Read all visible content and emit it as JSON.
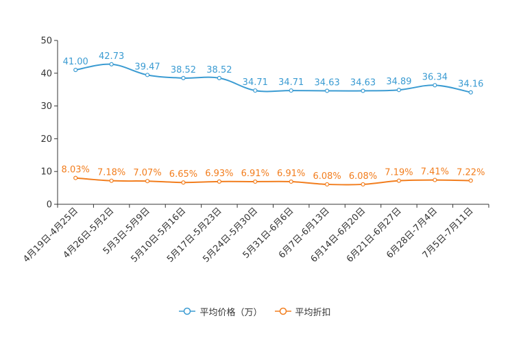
{
  "chart_data": {
    "type": "line",
    "categories": [
      "4月19日-4月25日",
      "4月26日-5月2日",
      "5月3日-5月9日",
      "5月10日-5月16日",
      "5月17日-5月23日",
      "5月24日-5月30日",
      "5月31日-6月6日",
      "6月7日-6月13日",
      "6月14日-6月20日",
      "6月21日-6月27日",
      "6月28日-7月4日",
      "7月5日-7月11日"
    ],
    "series": [
      {
        "name": "平均价格（万）",
        "color": "#3a9bd2",
        "values": [
          41.0,
          42.73,
          39.47,
          38.52,
          38.52,
          34.71,
          34.71,
          34.63,
          34.63,
          34.89,
          36.34,
          34.16
        ],
        "labels": [
          "41.00",
          "42.73",
          "39.47",
          "38.52",
          "38.52",
          "34.71",
          "34.71",
          "34.63",
          "34.63",
          "34.89",
          "36.34",
          "34.16"
        ]
      },
      {
        "name": "平均折扣",
        "color": "#f27d1d",
        "values": [
          8.03,
          7.18,
          7.07,
          6.65,
          6.93,
          6.91,
          6.91,
          6.08,
          6.08,
          7.19,
          7.41,
          7.22
        ],
        "labels": [
          "8.03%",
          "7.18%",
          "7.07%",
          "6.65%",
          "6.93%",
          "6.91%",
          "6.91%",
          "6.08%",
          "6.08%",
          "7.19%",
          "7.41%",
          "7.22%"
        ]
      }
    ],
    "ylim": [
      0,
      50
    ],
    "yticks": [
      "0",
      "10",
      "20",
      "30",
      "40",
      "50"
    ],
    "grid": false,
    "legend_position": "bottom-center"
  }
}
